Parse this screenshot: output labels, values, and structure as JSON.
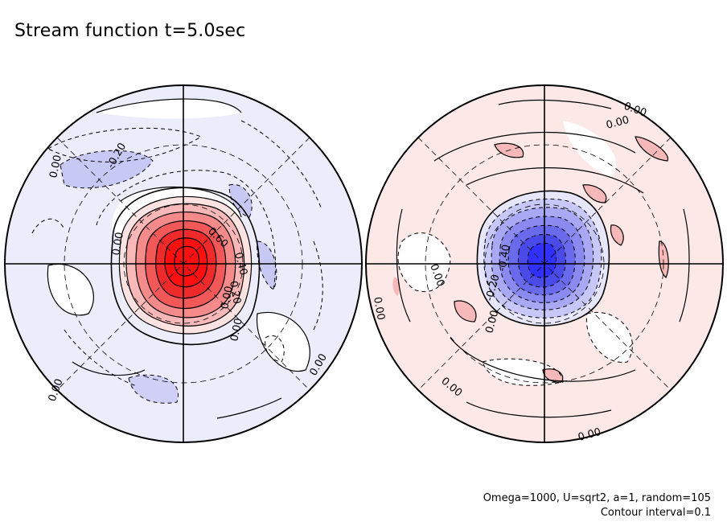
{
  "title": "Stream function t=5.0sec",
  "footer": {
    "params": "Omega=1000, U=sqrt2, a=1, random=105",
    "interval": "Contour interval=0.1"
  },
  "chart_data": {
    "type": "contour",
    "panels": [
      {
        "name": "left hemisphere",
        "extremum_sign": "positive",
        "fill_color": "#ff1a1a",
        "background_tint": "#e8e8fb",
        "contour_labels": [
          "0.00",
          "-0.20",
          "0.00",
          "0.60",
          "0.40",
          "0.20",
          "0.00",
          "0.00",
          "0.00",
          "0.00"
        ]
      },
      {
        "name": "right hemisphere",
        "extremum_sign": "negative",
        "fill_color": "#3030ff",
        "background_tint": "#fce6e6",
        "contour_labels": [
          "0.00",
          "0.00",
          "0.00",
          "0.00",
          "-0.40",
          "-0.20",
          "0.00",
          "0.00",
          "0.00"
        ]
      }
    ],
    "contour_interval": 0.1,
    "grid": true
  }
}
